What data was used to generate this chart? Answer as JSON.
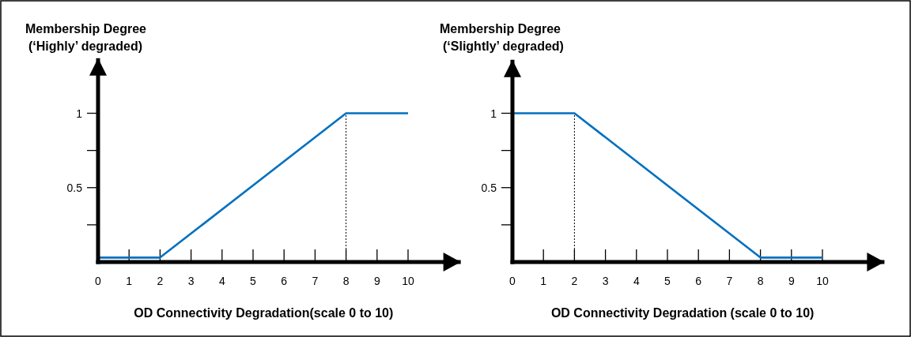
{
  "chart_data": [
    {
      "type": "line",
      "ylabel": "Membership Degree\n(‘Highly’ degraded)",
      "xlabel": "OD Connectivity Degradation(scale 0 to 10)",
      "xlim": [
        0,
        11.7
      ],
      "xticks": [
        0,
        1,
        2,
        3,
        4,
        5,
        6,
        7,
        8,
        9,
        10
      ],
      "ylim": [
        0,
        1.37
      ],
      "yticks": [
        {
          "value": 0.25,
          "label": null
        },
        {
          "value": 0.5,
          "label": "0.5"
        },
        {
          "value": 0.75,
          "label": null
        },
        1
      ],
      "series": [
        {
          "x": [
            0,
            2,
            8,
            10
          ],
          "values": [
            0.03,
            0.03,
            1,
            1
          ],
          "color": "#0070c0"
        }
      ],
      "ref_lines": [
        {
          "axis": "x",
          "value": 8,
          "line_style": "dotted",
          "color": "#000000"
        }
      ],
      "marker": "none",
      "line_style": "solid"
    },
    {
      "type": "line",
      "ylabel": "Membership Degree\n(‘Slightly’ degraded)",
      "xlabel": "OD Connectivity Degradation (scale 0 to 10)",
      "xlim": [
        0,
        12
      ],
      "xticks": [
        0,
        1,
        2,
        3,
        4,
        5,
        6,
        7,
        8,
        9,
        10
      ],
      "ylim": [
        0,
        1.36
      ],
      "yticks": [
        {
          "value": 0.25,
          "label": null
        },
        {
          "value": 0.5,
          "label": "0.5"
        },
        {
          "value": 0.75,
          "label": null
        },
        1
      ],
      "series": [
        {
          "x": [
            0,
            2,
            8,
            10
          ],
          "values": [
            1,
            1,
            0.03,
            0.03
          ],
          "color": "#0070c0"
        }
      ],
      "ref_lines": [
        {
          "axis": "x",
          "value": 2,
          "line_style": "dotted",
          "color": "#000000"
        }
      ],
      "marker": "none",
      "line_style": "solid"
    }
  ]
}
